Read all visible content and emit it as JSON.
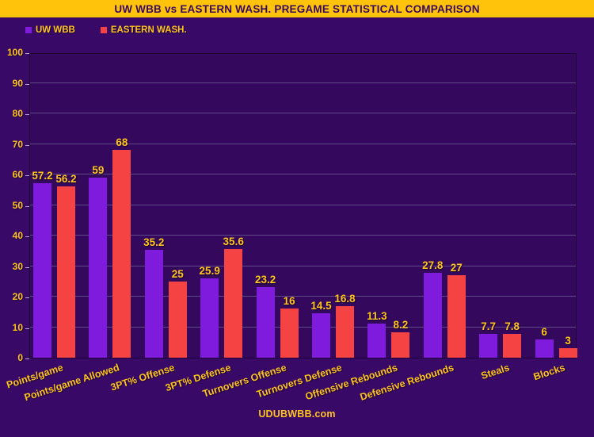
{
  "header": {
    "title": "UW WBB vs EASTERN WASH. PREGAME STATISTICAL COMPARISON"
  },
  "footer": {
    "site": "UDUBWBB.com"
  },
  "colors": {
    "background": "#380966",
    "banner_gold": "#FFC30B",
    "title_text": "#38095F",
    "label_yellow": "#FFC41E",
    "uw_purple": "#7E1BDC",
    "ew_red": "#F54343",
    "gridline": "#6A5A93",
    "plot_border": "#1D0435"
  },
  "chart_data": {
    "type": "bar",
    "title": "UW WBB vs EASTERN WASH. PREGAME STATISTICAL COMPARISON",
    "categories": [
      "Points/game",
      "Points/game Allowed",
      "3PT% Offense",
      "3PT% Defense",
      "Turnovers Offense",
      "Turnovers Defense",
      "Offensive Rebounds",
      "Defensive Rebounds",
      "Steals",
      "Blocks"
    ],
    "series": [
      {
        "name": "UW WBB",
        "color": "#7E1BDC",
        "values": [
          57.2,
          59,
          35.2,
          25.9,
          23.2,
          14.5,
          11.3,
          27.8,
          7.7,
          6
        ]
      },
      {
        "name": "EASTERN WASH.",
        "color": "#F54343",
        "values": [
          56.2,
          68,
          25,
          35.6,
          16,
          16.8,
          8.2,
          27,
          7.8,
          3
        ]
      }
    ],
    "ylim": [
      0,
      100
    ],
    "yticks": [
      0,
      10,
      20,
      30,
      40,
      50,
      60,
      70,
      80,
      90,
      100
    ],
    "grid": true,
    "legend_position": "top-left"
  }
}
